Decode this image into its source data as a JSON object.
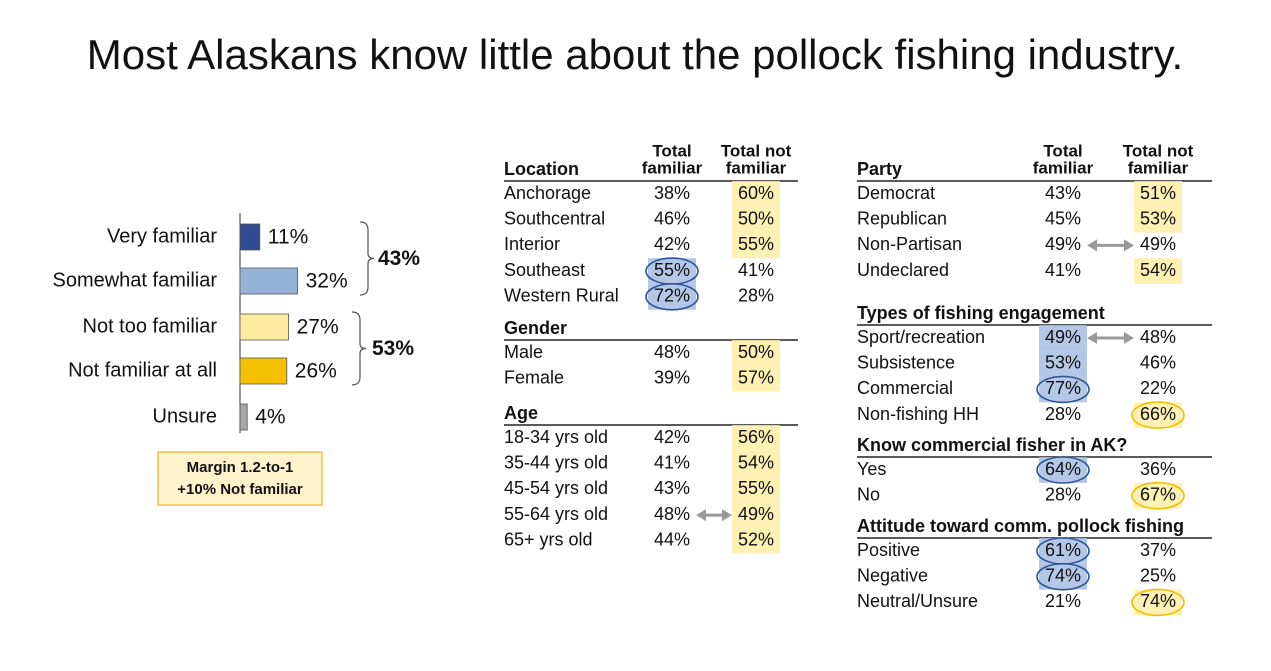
{
  "title": "Most Alaskans know little about the pollock fishing industry.",
  "chart_data": {
    "type": "bar",
    "orientation": "horizontal",
    "categories": [
      "Very familiar",
      "Somewhat familiar",
      "Not too familiar",
      "Not familiar at all",
      "Unsure"
    ],
    "values": [
      11,
      32,
      27,
      26,
      4
    ],
    "value_labels": [
      "11%",
      "32%",
      "27%",
      "26%",
      "4%"
    ],
    "colors": [
      "#2f4a8f",
      "#95b3d7",
      "#ffeaa0",
      "#f5c000",
      "#a6a6a6"
    ]
  },
  "brackets": [
    {
      "label": "43%",
      "color": "#2f5597"
    },
    {
      "label": "53%",
      "color": "#d6a520"
    }
  ],
  "margin_box": [
    "Margin 1.2-to-1",
    "+10%  Not familiar"
  ],
  "tables": [
    {
      "column_headers": {
        "familiar": [
          "Total",
          "familiar"
        ],
        "not_familiar": [
          "Total not",
          "familiar"
        ]
      },
      "groups": [
        {
          "name": "Location",
          "rows": [
            {
              "label": "Anchorage",
              "familiar": "38%",
              "not_familiar": "60%",
              "style": [
                "plain",
                "shade"
              ]
            },
            {
              "label": "Southcentral",
              "familiar": "46%",
              "not_familiar": "50%",
              "style": [
                "plain",
                "shade"
              ]
            },
            {
              "label": "Interior",
              "familiar": "42%",
              "not_familiar": "55%",
              "style": [
                "plain",
                "shade"
              ]
            },
            {
              "label": "Southeast",
              "familiar": "55%",
              "not_familiar": "41%",
              "style": [
                "ring",
                "plain"
              ]
            },
            {
              "label": "Western Rural",
              "familiar": "72%",
              "not_familiar": "28%",
              "style": [
                "ring",
                "plain"
              ]
            }
          ]
        },
        {
          "name": "Gender",
          "rows": [
            {
              "label": "Male",
              "familiar": "48%",
              "not_familiar": "50%",
              "style": [
                "plain",
                "shade"
              ]
            },
            {
              "label": "Female",
              "familiar": "39%",
              "not_familiar": "57%",
              "style": [
                "plain",
                "shade"
              ]
            }
          ]
        },
        {
          "name": "Age",
          "rows": [
            {
              "label": "18-34 yrs old",
              "familiar": "42%",
              "not_familiar": "56%",
              "style": [
                "plain",
                "shade"
              ]
            },
            {
              "label": "35-44 yrs old",
              "familiar": "41%",
              "not_familiar": "54%",
              "style": [
                "plain",
                "shade"
              ]
            },
            {
              "label": "45-54 yrs old",
              "familiar": "43%",
              "not_familiar": "55%",
              "style": [
                "plain",
                "shade"
              ]
            },
            {
              "label": "55-64 yrs old",
              "familiar": "48%",
              "not_familiar": "49%",
              "style": [
                "plain",
                "shade"
              ],
              "arrow": true
            },
            {
              "label": "65+ yrs old",
              "familiar": "44%",
              "not_familiar": "52%",
              "style": [
                "plain",
                "shade"
              ]
            }
          ]
        }
      ]
    },
    {
      "column_headers": {
        "familiar": [
          "Total",
          "familiar"
        ],
        "not_familiar": [
          "Total not",
          "familiar"
        ]
      },
      "groups": [
        {
          "name": "Party",
          "rows": [
            {
              "label": "Democrat",
              "familiar": "43%",
              "not_familiar": "51%",
              "style": [
                "plain",
                "shade"
              ]
            },
            {
              "label": "Republican",
              "familiar": "45%",
              "not_familiar": "53%",
              "style": [
                "plain",
                "shade"
              ]
            },
            {
              "label": "Non-Partisan",
              "familiar": "49%",
              "not_familiar": "49%",
              "style": [
                "plain",
                "plain"
              ],
              "arrow": true
            },
            {
              "label": "Undeclared",
              "familiar": "41%",
              "not_familiar": "54%",
              "style": [
                "plain",
                "shade"
              ]
            }
          ]
        },
        {
          "name": "Types of fishing engagement",
          "rows": [
            {
              "label": "Sport/recreation",
              "familiar": "49%",
              "not_familiar": "48%",
              "style": [
                "shade",
                "plain"
              ],
              "arrow": true
            },
            {
              "label": "Subsistence",
              "familiar": "53%",
              "not_familiar": "46%",
              "style": [
                "shade",
                "plain"
              ]
            },
            {
              "label": "Commercial",
              "familiar": "77%",
              "not_familiar": "22%",
              "style": [
                "ring",
                "plain"
              ]
            },
            {
              "label": "Non-fishing HH",
              "familiar": "28%",
              "not_familiar": "66%",
              "style": [
                "plain",
                "ring"
              ]
            }
          ]
        },
        {
          "name": "Know commercial fisher in AK?",
          "rows": [
            {
              "label": "Yes",
              "familiar": "64%",
              "not_familiar": "36%",
              "style": [
                "ring",
                "plain"
              ]
            },
            {
              "label": "No",
              "familiar": "28%",
              "not_familiar": "67%",
              "style": [
                "plain",
                "ring"
              ]
            }
          ]
        },
        {
          "name": "Attitude toward comm. pollock fishing",
          "rows": [
            {
              "label": "Positive",
              "familiar": "61%",
              "not_familiar": "37%",
              "style": [
                "ring",
                "plain"
              ]
            },
            {
              "label": "Negative",
              "familiar": "74%",
              "not_familiar": "25%",
              "style": [
                "ring",
                "plain"
              ]
            },
            {
              "label": "Neutral/Unsure",
              "familiar": "21%",
              "not_familiar": "74%",
              "style": [
                "plain",
                "ring"
              ]
            }
          ]
        }
      ]
    }
  ]
}
